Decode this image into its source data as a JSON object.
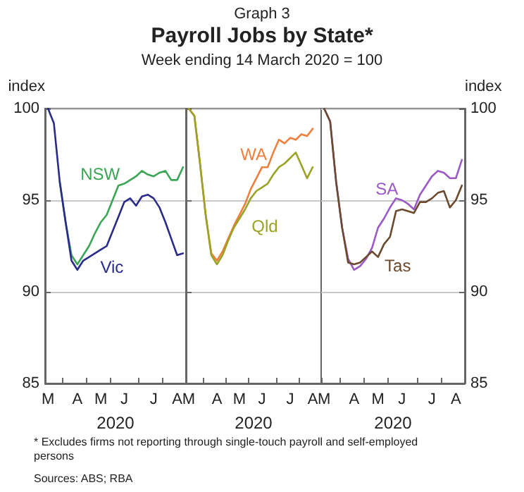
{
  "chart_data": [
    {
      "type": "line",
      "title": "Payroll Jobs by State*",
      "subtitle": "Week ending 14 March 2020 = 100",
      "annotations": [
        "Graph 3",
        "*  Excludes firms not reporting through single-touch payroll and self-employed persons",
        "Sources: ABS; RBA"
      ],
      "ylabel": "index",
      "xlabel": "2020",
      "categories": [
        "M",
        null,
        null,
        null,
        null,
        "A",
        null,
        null,
        null,
        "M",
        null,
        null,
        null,
        "J",
        null,
        null,
        null,
        null,
        "J",
        null,
        null,
        null,
        "A",
        null
      ],
      "series": [
        {
          "name": "NSW",
          "color": "#3aa655",
          "values": [
            null,
            null,
            96.0,
            93.8,
            92.0,
            91.5,
            92.0,
            92.5,
            93.2,
            93.8,
            94.2,
            95.0,
            95.8,
            95.9,
            96.1,
            96.3,
            96.6,
            96.4,
            96.3,
            96.5,
            96.6,
            96.1,
            96.1,
            96.8
          ]
        },
        {
          "name": "Vic",
          "color": "#2b2b8c",
          "values": [
            100,
            99.2,
            96.0,
            93.8,
            91.7,
            91.2,
            91.7,
            91.9,
            92.1,
            92.3,
            92.5,
            93.3,
            94.1,
            94.9,
            95.1,
            94.7,
            95.2,
            95.3,
            95.1,
            94.6,
            93.8,
            92.9,
            92.0,
            92.1
          ]
        }
      ],
      "ylim": [
        85,
        100
      ],
      "yticks": [
        85,
        90,
        95,
        100
      ],
      "grid": "y",
      "legend": false
    },
    {
      "type": "line",
      "xlabel": "2020",
      "tick_labels": "x",
      "categories": [
        "M",
        null,
        null,
        null,
        null,
        "A",
        null,
        null,
        null,
        "M",
        null,
        null,
        null,
        "J",
        null,
        null,
        null,
        null,
        "J",
        null,
        null,
        null,
        "A",
        null
      ],
      "series": [
        {
          "name": "WA",
          "color": "#f07f3c",
          "values": [
            100,
            99.6,
            97.0,
            94.2,
            92.1,
            91.7,
            92.2,
            92.9,
            93.6,
            94.2,
            94.8,
            95.6,
            96.2,
            96.8,
            96.8,
            97.6,
            98.3,
            98.1,
            98.4,
            98.3,
            98.6,
            98.5,
            98.9,
            null
          ]
        },
        {
          "name": "Qld",
          "color": "#9aa326",
          "values": [
            100,
            99.6,
            97.0,
            94.2,
            92.0,
            91.5,
            92.0,
            92.8,
            93.5,
            94.0,
            94.5,
            95.1,
            95.5,
            95.7,
            95.9,
            96.4,
            96.8,
            97.0,
            97.3,
            97.6,
            96.9,
            96.2,
            96.8,
            null
          ]
        }
      ],
      "ylim": [
        85,
        100
      ],
      "yticks": [
        85,
        90,
        95,
        100
      ],
      "grid": "y",
      "legend": false
    },
    {
      "type": "line",
      "ylabel": "index",
      "xlabel": "2020",
      "categories": [
        "M",
        null,
        null,
        null,
        null,
        "A",
        null,
        null,
        null,
        "M",
        null,
        null,
        null,
        "J",
        null,
        null,
        null,
        null,
        "J",
        null,
        null,
        null,
        "A",
        null
      ],
      "series": [
        {
          "name": "SA",
          "color": "#9b59c6",
          "values": [
            100,
            99.3,
            96.0,
            93.5,
            91.8,
            91.2,
            91.4,
            91.8,
            92.4,
            93.5,
            94.0,
            94.6,
            95.1,
            95.0,
            94.8,
            94.5,
            95.3,
            95.8,
            96.3,
            96.6,
            96.5,
            96.2,
            96.2,
            97.2
          ]
        },
        {
          "name": "Tas",
          "color": "#6b4a2e",
          "values": [
            100,
            99.3,
            96.0,
            93.5,
            91.6,
            91.5,
            91.6,
            91.9,
            92.2,
            91.9,
            92.6,
            93.0,
            94.4,
            94.5,
            94.4,
            94.3,
            94.9,
            94.9,
            95.1,
            95.4,
            95.5,
            94.6,
            95.0,
            95.8
          ]
        }
      ],
      "ylim": [
        85,
        100
      ],
      "yticks": [
        85,
        90,
        95,
        100
      ],
      "grid": "y",
      "legend": false
    }
  ]
}
